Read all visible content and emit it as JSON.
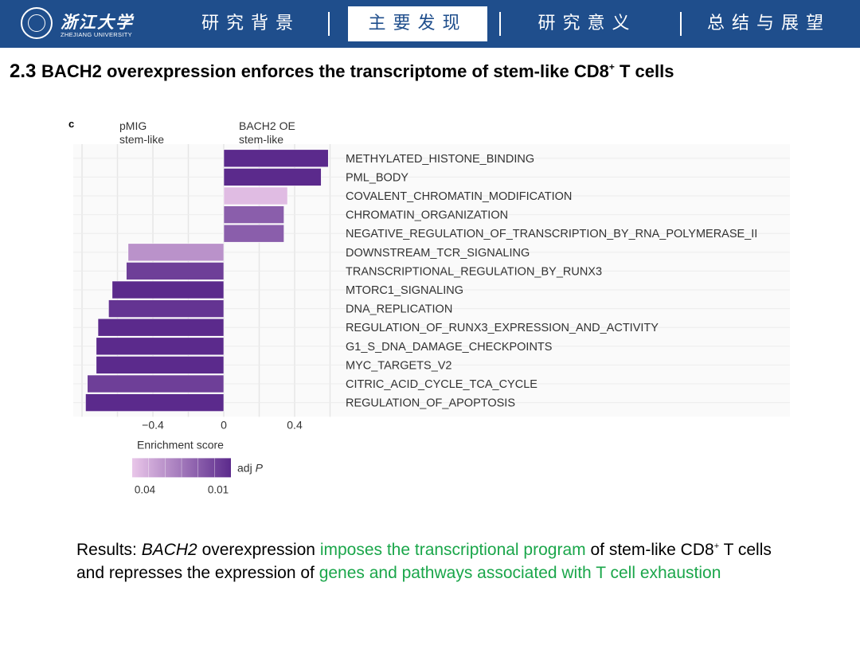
{
  "header": {
    "logo_cn": "浙江大学",
    "logo_en": "ZHEJIANG UNIVERSITY",
    "nav": [
      {
        "label": "研究背景",
        "active": false
      },
      {
        "label": "主要发现",
        "active": true
      },
      {
        "label": "研究意义",
        "active": false
      },
      {
        "label": "总结与展望",
        "active": false
      }
    ],
    "colors": {
      "bar": "#1f4e8c",
      "active_bg": "#ffffff"
    }
  },
  "title": {
    "number": "2.3",
    "text_before_sup": "BACH2 overexpression enforces the transcriptome of stem-like CD8",
    "sup": "+",
    "text_after_sup": " T cells"
  },
  "results": {
    "prefix": "Results: ",
    "gene": "BACH2",
    "part1": " overexpression ",
    "highlight1": "imposes the transcriptional program",
    "part2": " of stem-like CD8",
    "sup": "+",
    "part3": " T cells and represses the expression of ",
    "highlight2": "genes and pathways associated with T cell exhaustion",
    "highlight_color": "#1aa64a"
  },
  "chart_data": {
    "type": "bar",
    "orientation": "horizontal",
    "panel_label": "c",
    "group_labels": {
      "negative": "pMIG\nstem-like",
      "positive": "BACH2 OE\nstem-like"
    },
    "categories": [
      "METHYLATED_HISTONE_BINDING",
      "PML_BODY",
      "COVALENT_CHROMATIN_MODIFICATION",
      "CHROMATIN_ORGANIZATION",
      "NEGATIVE_REGULATION_OF_TRANSCRIPTION_BY_RNA_POLYMERASE_II",
      "DOWNSTREAM_TCR_SIGNALING",
      "TRANSCRIPTIONAL_REGULATION_BY_RUNX3",
      "MTORC1_SIGNALING",
      "DNA_REPLICATION",
      "REGULATION_OF_RUNX3_EXPRESSION_AND_ACTIVITY",
      "G1_S_DNA_DAMAGE_CHECKPOINTS",
      "MYC_TARGETS_V2",
      "CITRIC_ACID_CYCLE_TCA_CYCLE",
      "REGULATION_OF_APOPTOSIS"
    ],
    "values": [
      0.59,
      0.55,
      0.36,
      0.34,
      0.34,
      -0.54,
      -0.55,
      -0.63,
      -0.65,
      -0.71,
      -0.72,
      -0.72,
      -0.77,
      -0.78
    ],
    "adj_p": [
      0.008,
      0.009,
      0.038,
      0.02,
      0.02,
      0.03,
      0.014,
      0.01,
      0.012,
      0.01,
      0.008,
      0.008,
      0.014,
      0.008
    ],
    "xticks": [
      -0.4,
      0,
      0.4
    ],
    "xtick_labels": [
      "−0.4",
      "0",
      "0.4"
    ],
    "xlim": [
      -0.8,
      0.6
    ],
    "xlabel": "Enrichment score",
    "legend": {
      "title": "adj P",
      "title_plain": "adj ",
      "title_italic": "P",
      "range": [
        0.04,
        0.01
      ],
      "tick_labels": [
        "0.04",
        "0.01"
      ],
      "colors": [
        "#e9c6e9",
        "#5b2a8c"
      ]
    }
  }
}
